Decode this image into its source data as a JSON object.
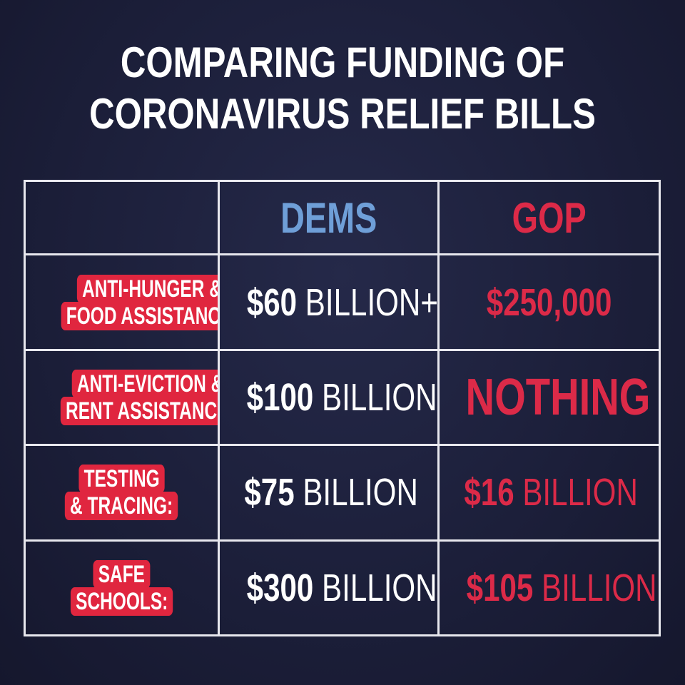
{
  "title": {
    "line1": "COMPARING FUNDING OF",
    "line2": "CORONAVIRUS RELIEF BILLS"
  },
  "headers": {
    "dems": "DEMS",
    "gop": "GOP"
  },
  "rows": [
    {
      "label_lines": [
        "ANTI-HUNGER &",
        "FOOD ASSISTANCE:"
      ],
      "dems": {
        "amount": "$60",
        "unit": " BILLION+"
      },
      "gop": {
        "amount": "$250,000",
        "unit": ""
      }
    },
    {
      "label_lines": [
        "ANTI-EVICTION &",
        "RENT ASSISTANCE:"
      ],
      "dems": {
        "amount": "$100",
        "unit": " BILLION"
      },
      "gop": {
        "amount": "NOTHING",
        "unit": ""
      }
    },
    {
      "label_lines": [
        "TESTING",
        "& TRACING:"
      ],
      "dems": {
        "amount": "$75",
        "unit": " BILLION"
      },
      "gop": {
        "amount": "$16",
        "unit": " BILLION"
      }
    },
    {
      "label_lines": [
        "SAFE",
        "SCHOOLS:"
      ],
      "dems": {
        "amount": "$300",
        "unit": " BILLION"
      },
      "gop": {
        "amount": "$105",
        "unit": " BILLION"
      }
    }
  ],
  "colors": {
    "background": "#1c1f3a",
    "dems": "#6f9fd8",
    "gop": "#dc2a48",
    "label_bg": "#e0263f",
    "grid": "#e8e8ee"
  }
}
